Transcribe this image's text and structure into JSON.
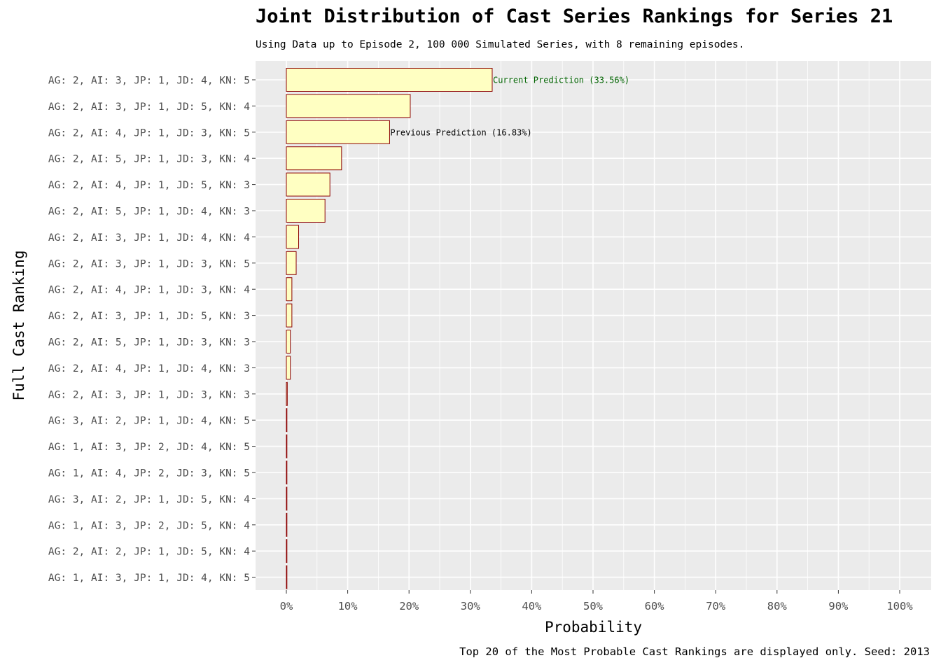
{
  "chart_data": {
    "type": "bar",
    "orientation": "horizontal",
    "title": "Joint Distribution of Cast Series Rankings for Series 21",
    "subtitle": "Using Data up to Episode 2, 100 000 Simulated Series, with 8 remaining episodes.",
    "caption": "Top 20 of the Most Probable Cast Rankings are displayed only. Seed: 2013",
    "xlabel": "Probability",
    "ylabel": "Full Cast Ranking",
    "xlim": [
      0,
      100
    ],
    "x_ticks": [
      "0%",
      "10%",
      "20%",
      "30%",
      "40%",
      "50%",
      "60%",
      "70%",
      "80%",
      "90%",
      "100%"
    ],
    "categories": [
      "AG: 2, AI: 3, JP: 1, JD: 4, KN: 5",
      "AG: 2, AI: 3, JP: 1, JD: 5, KN: 4",
      "AG: 2, AI: 4, JP: 1, JD: 3, KN: 5",
      "AG: 2, AI: 5, JP: 1, JD: 3, KN: 4",
      "AG: 2, AI: 4, JP: 1, JD: 5, KN: 3",
      "AG: 2, AI: 5, JP: 1, JD: 4, KN: 3",
      "AG: 2, AI: 3, JP: 1, JD: 4, KN: 4",
      "AG: 2, AI: 3, JP: 1, JD: 3, KN: 5",
      "AG: 2, AI: 4, JP: 1, JD: 3, KN: 4",
      "AG: 2, AI: 3, JP: 1, JD: 5, KN: 3",
      "AG: 2, AI: 5, JP: 1, JD: 3, KN: 3",
      "AG: 2, AI: 4, JP: 1, JD: 4, KN: 3",
      "AG: 2, AI: 3, JP: 1, JD: 3, KN: 3",
      "AG: 3, AI: 2, JP: 1, JD: 4, KN: 5",
      "AG: 1, AI: 3, JP: 2, JD: 4, KN: 5",
      "AG: 1, AI: 4, JP: 2, JD: 3, KN: 5",
      "AG: 3, AI: 2, JP: 1, JD: 5, KN: 4",
      "AG: 1, AI: 3, JP: 2, JD: 5, KN: 4",
      "AG: 2, AI: 2, JP: 1, JD: 5, KN: 4",
      "AG: 1, AI: 3, JP: 1, JD: 4, KN: 5"
    ],
    "values": [
      33.56,
      20.2,
      16.83,
      9.0,
      7.1,
      6.3,
      2.0,
      1.6,
      0.9,
      0.9,
      0.65,
      0.65,
      0.15,
      0.03,
      0.03,
      0.02,
      0.02,
      0.02,
      0.02,
      0.02
    ],
    "annotations": [
      {
        "category_index": 0,
        "text": "Current Prediction (33.56%)",
        "color": "#006400"
      },
      {
        "category_index": 2,
        "text": "Previous Prediction (16.83%)",
        "color": "#000000"
      }
    ],
    "colors": {
      "bar_fill": "#FFFFC2",
      "bar_stroke": "#8B0000",
      "panel_bg": "#EBEBEB",
      "grid": "#FFFFFF"
    },
    "grid": true,
    "legend": "none"
  }
}
